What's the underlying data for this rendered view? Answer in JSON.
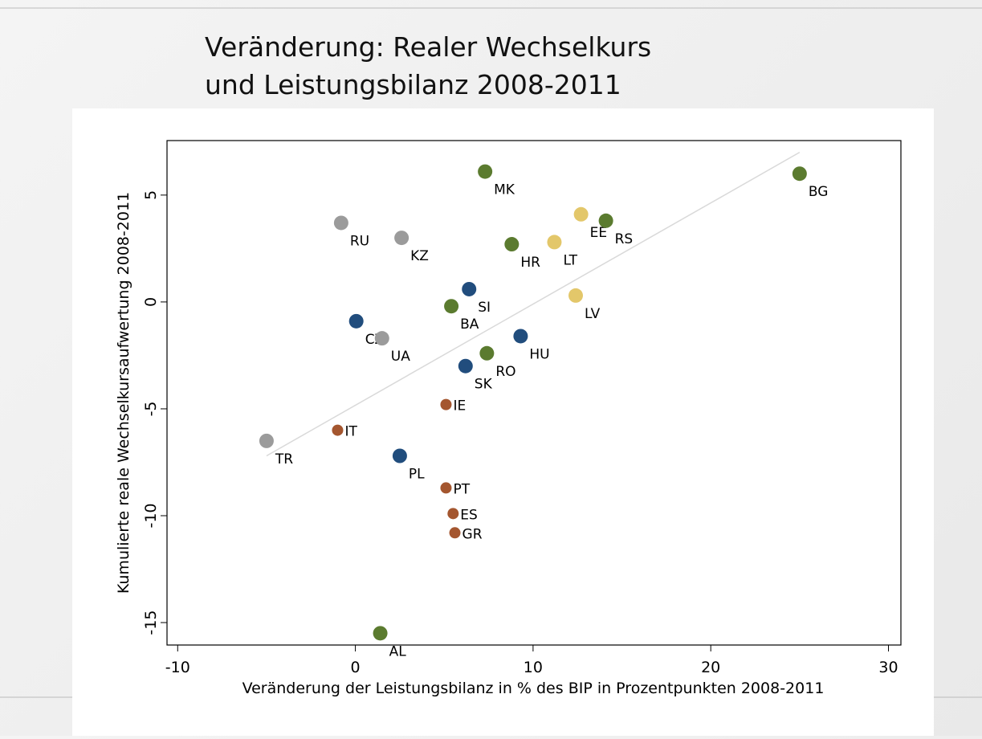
{
  "chart_data": {
    "type": "scatter",
    "title": "Veränderung: Realer Wechselkurs",
    "subtitle": "und Leistungsbilanz 2008-2011",
    "x_label": "Veränderung der Leistungsbilanz in % des BIP in Prozentpunkten 2008-2011",
    "y_label": "Kumulierte reale Wechselkursaufwertung 2008-2011",
    "categories": [
      "MK",
      "BG",
      "RU",
      "KZ",
      "EE",
      "RS",
      "HR",
      "LT",
      "SI",
      "BA",
      "LV",
      "CZ",
      "UA",
      "HU",
      "RO",
      "SK",
      "IE",
      "IT",
      "TR",
      "PL",
      "PT",
      "ES",
      "GR",
      "AL"
    ],
    "x": [
      7.3,
      25.0,
      -0.8,
      2.6,
      12.7,
      14.1,
      8.8,
      11.2,
      6.4,
      5.4,
      12.4,
      0.05,
      1.5,
      9.3,
      7.4,
      6.2,
      5.1,
      -1.0,
      -5.0,
      2.5,
      5.1,
      5.5,
      5.6,
      1.4
    ],
    "y": [
      6.1,
      6.0,
      3.7,
      3.0,
      4.1,
      3.8,
      2.7,
      2.8,
      0.6,
      -0.2,
      0.3,
      -0.9,
      -1.7,
      -1.6,
      -2.4,
      -3.0,
      -4.8,
      -6.0,
      -6.5,
      -7.2,
      -8.7,
      -9.9,
      -10.8,
      -15.5
    ],
    "colors": [
      "#5b7b2f",
      "#5b7b2f",
      "#9b9b9b",
      "#9b9b9b",
      "#e3c76a",
      "#5b7b2f",
      "#5b7b2f",
      "#e3c76a",
      "#214d7d",
      "#5b7b2f",
      "#e3c76a",
      "#214d7d",
      "#9b9b9b",
      "#214d7d",
      "#5b7b2f",
      "#214d7d",
      "#a4562f",
      "#a4562f",
      "#9b9b9b",
      "#214d7d",
      "#a4562f",
      "#a4562f",
      "#a4562f",
      "#5b7b2f"
    ],
    "fit_line": {
      "x": [
        -5.0,
        25.0
      ],
      "y": [
        -7.2,
        7.0
      ],
      "color": "#d9d9d9"
    },
    "xlim": [
      -10.6,
      30.7
    ],
    "ylim": [
      -16.05,
      7.55
    ],
    "xticks": [
      -10,
      0,
      10,
      20,
      30
    ],
    "yticks": [
      -15,
      -10,
      -5,
      0,
      5
    ]
  }
}
